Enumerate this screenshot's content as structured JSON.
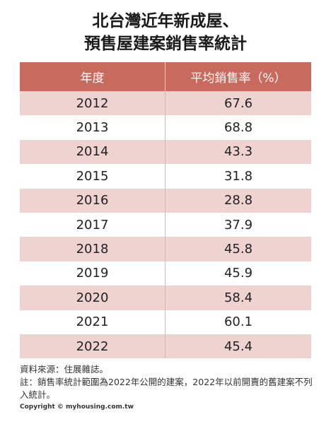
{
  "title": {
    "line1": "北台灣近年新成屋、",
    "line2": "預售屋建案銷售率統計"
  },
  "table": {
    "headers": [
      "年度",
      "平均銷售率（%）"
    ],
    "rows": [
      [
        "2012",
        "67.6"
      ],
      [
        "2013",
        "68.8"
      ],
      [
        "2014",
        "43.3"
      ],
      [
        "2015",
        "31.8"
      ],
      [
        "2016",
        "28.8"
      ],
      [
        "2017",
        "37.9"
      ],
      [
        "2018",
        "45.8"
      ],
      [
        "2019",
        "45.9"
      ],
      [
        "2020",
        "58.4"
      ],
      [
        "2021",
        "60.1"
      ],
      [
        "2022",
        "45.4"
      ]
    ]
  },
  "notes": {
    "source": "資料來源：住展雜誌。",
    "note": "註：銷售率統計範圍為2022年公開的建案，2022年以前開賣的舊建案不列入統計。"
  },
  "copyright": "Copyright © myhousing.com.tw",
  "colors": {
    "header_bg": "#c96a5f",
    "stripe_bg": "#efd3d1"
  }
}
